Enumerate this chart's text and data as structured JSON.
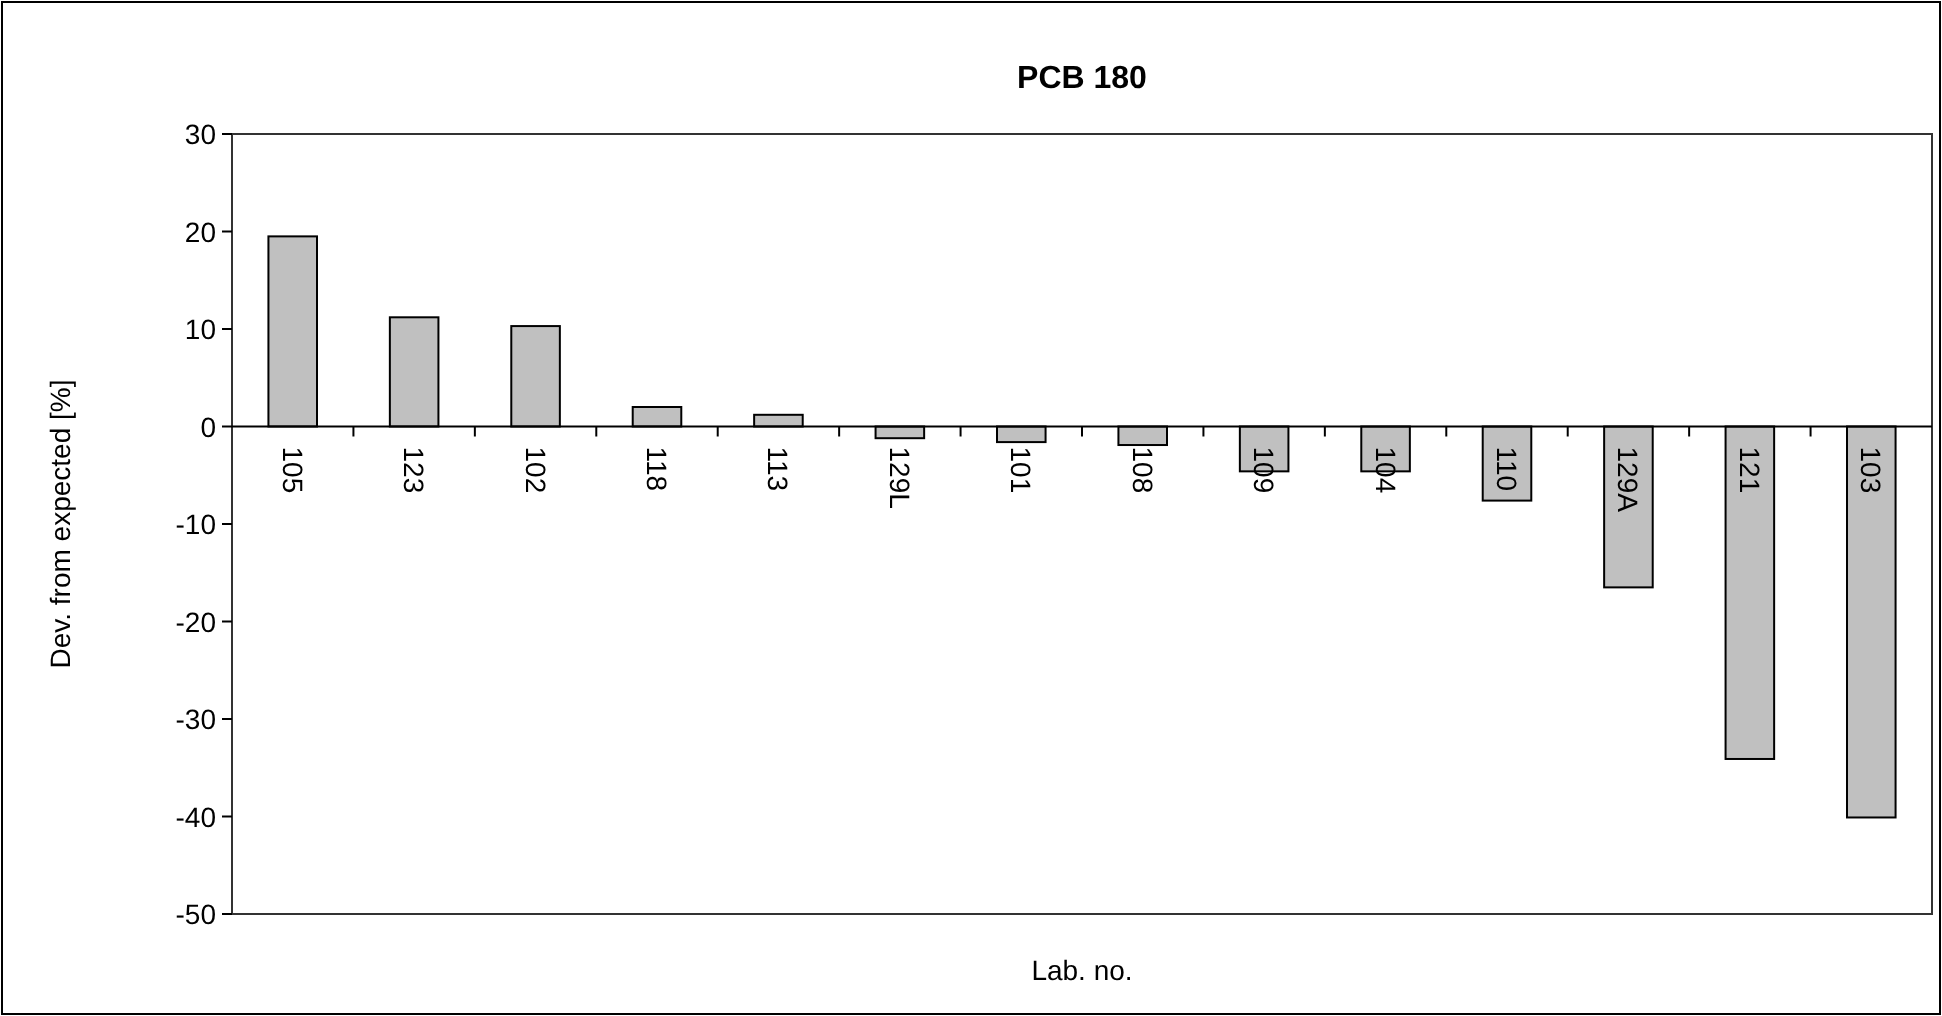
{
  "chart_data": {
    "type": "bar",
    "title": "PCB 180",
    "xlabel": "Lab. no.",
    "ylabel": "Dev. from expected [%]",
    "categories": [
      "105",
      "123",
      "102",
      "118",
      "113",
      "129L",
      "101",
      "108",
      "109",
      "104",
      "110",
      "129A",
      "121",
      "103"
    ],
    "values": [
      19.5,
      11.2,
      10.3,
      2.0,
      1.2,
      -1.2,
      -1.6,
      -1.9,
      -4.6,
      -4.6,
      -7.6,
      -16.5,
      -34.1,
      -40.1
    ],
    "color": "#c0c0c0",
    "ylim": [
      -50,
      30
    ],
    "yticks": [
      -50,
      -40,
      -30,
      -20,
      -10,
      0,
      10,
      20,
      30
    ],
    "grid": false
  }
}
